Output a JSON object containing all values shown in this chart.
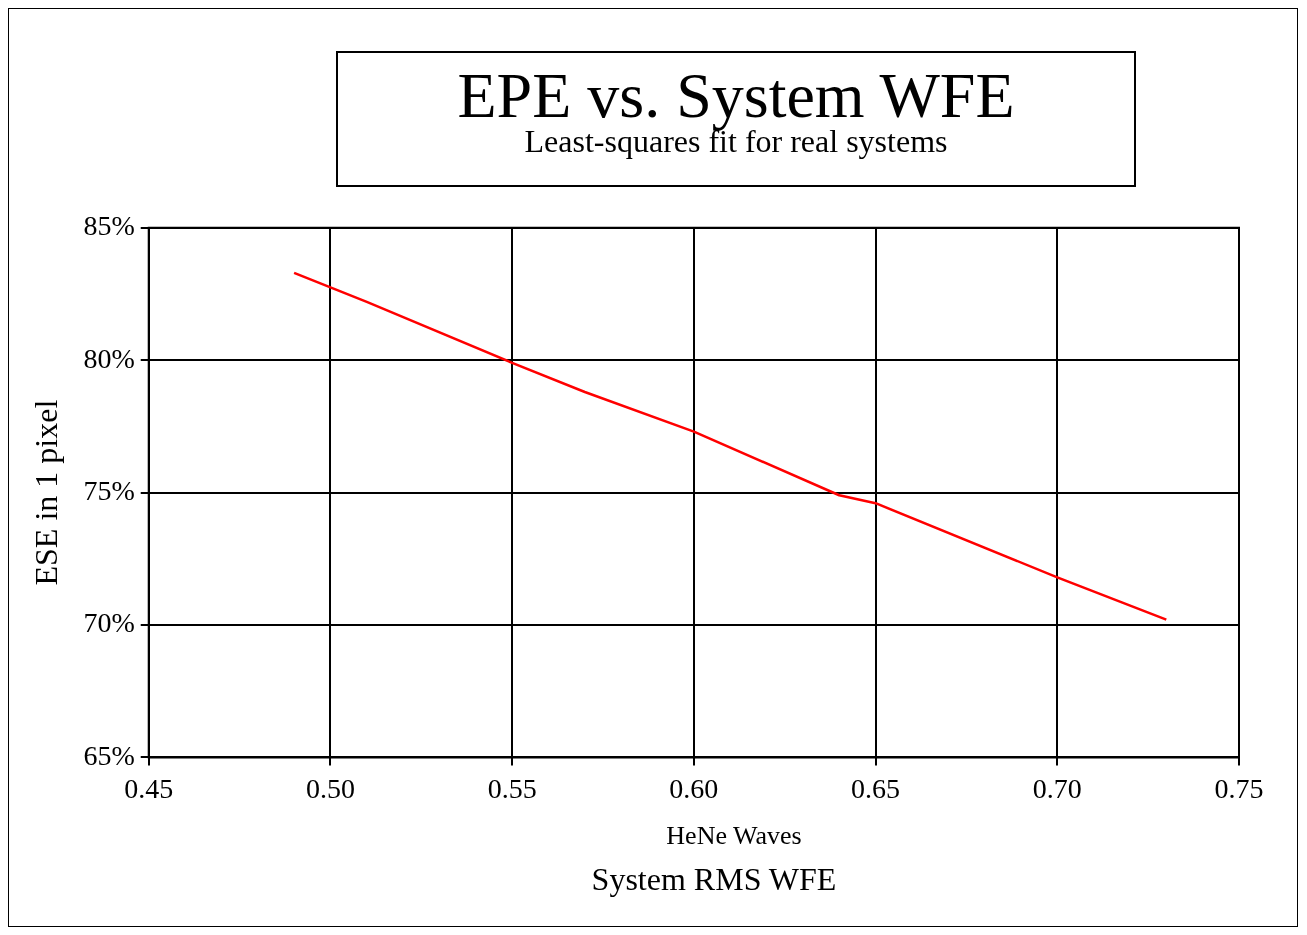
{
  "chart_data": {
    "type": "line",
    "title": "EPE vs. System WFE",
    "subtitle": "Least-squares fit for real systems",
    "xlabel": "System RMS WFE",
    "ylabel": "ESE in 1 pixel",
    "annotations": [
      "HeNe Waves"
    ],
    "series": [
      {
        "color": "#ff0000",
        "x": [
          0.49,
          0.51,
          0.55,
          0.57,
          0.6,
          0.64,
          0.65,
          0.7,
          0.73
        ],
        "values": [
          83.3,
          82.2,
          79.9,
          78.8,
          77.3,
          74.9,
          74.6,
          71.8,
          70.2
        ]
      }
    ],
    "xlim": [
      0.45,
      0.75
    ],
    "xticks": [
      {
        "value": 0.45,
        "label": "0.45"
      },
      {
        "value": 0.5,
        "label": "0.50"
      },
      {
        "value": 0.55,
        "label": "0.55"
      },
      {
        "value": 0.6,
        "label": "0.60"
      },
      {
        "value": 0.65,
        "label": "0.65"
      },
      {
        "value": 0.7,
        "label": "0.70"
      },
      {
        "value": 0.75,
        "label": "0.75"
      }
    ],
    "ylim": [
      65,
      85
    ],
    "yticks": [
      {
        "value": 65,
        "label": "65%"
      },
      {
        "value": 70,
        "label": "70%"
      },
      {
        "value": 75,
        "label": "75%"
      },
      {
        "value": 80,
        "label": "80%"
      },
      {
        "value": 85,
        "label": "85%"
      }
    ],
    "grid": true,
    "marker": "none",
    "line_style": "solid",
    "legend": false
  }
}
